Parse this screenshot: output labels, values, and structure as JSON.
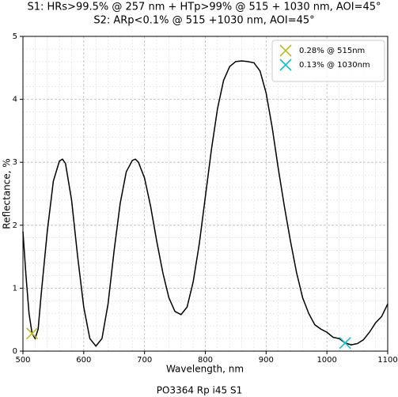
{
  "chart_data": {
    "type": "line",
    "title": "S1: HRs>99.5% @ 257 nm + HTp>99% @ 515 + 1030 nm, AOI=45°",
    "subtitle": "S2: ARp<0.1% @ 515 +1030 nm, AOI=45°",
    "xlabel": "Wavelength, nm",
    "ylabel": "Reflectance, %",
    "caption": "PO3364 Rp i45 S1",
    "xlim": [
      500,
      1100
    ],
    "ylim": [
      0,
      5
    ],
    "xticks": [
      500,
      600,
      700,
      800,
      900,
      1000,
      1100
    ],
    "yticks": [
      0,
      1,
      2,
      3,
      4,
      5
    ],
    "grid": true,
    "minor_grid": true,
    "legend": "upper right",
    "x": [
      500,
      505,
      510,
      515,
      520,
      525,
      530,
      540,
      550,
      560,
      565,
      570,
      580,
      590,
      600,
      610,
      620,
      630,
      640,
      650,
      660,
      670,
      680,
      685,
      690,
      700,
      710,
      720,
      730,
      740,
      750,
      760,
      770,
      780,
      790,
      800,
      810,
      820,
      830,
      840,
      850,
      860,
      870,
      880,
      890,
      900,
      910,
      920,
      930,
      940,
      950,
      960,
      970,
      980,
      990,
      1000,
      1010,
      1020,
      1030,
      1040,
      1050,
      1060,
      1070,
      1080,
      1090,
      1100
    ],
    "series": [
      {
        "color": "#000000",
        "values": [
          1.9,
          1.2,
          0.6,
          0.28,
          0.2,
          0.35,
          0.9,
          1.9,
          2.7,
          3.02,
          3.05,
          2.98,
          2.4,
          1.5,
          0.7,
          0.2,
          0.08,
          0.2,
          0.75,
          1.6,
          2.35,
          2.85,
          3.03,
          3.05,
          3.0,
          2.75,
          2.3,
          1.75,
          1.25,
          0.85,
          0.63,
          0.58,
          0.7,
          1.1,
          1.7,
          2.45,
          3.2,
          3.85,
          4.3,
          4.52,
          4.6,
          4.61,
          4.6,
          4.58,
          4.45,
          4.1,
          3.55,
          2.9,
          2.3,
          1.75,
          1.25,
          0.85,
          0.6,
          0.42,
          0.35,
          0.3,
          0.22,
          0.2,
          0.13,
          0.1,
          0.12,
          0.18,
          0.3,
          0.45,
          0.55,
          0.75
        ]
      }
    ],
    "points": [
      {
        "name": "0.28% @ 515nm",
        "color": "#bcbd22",
        "marker": "x",
        "x": [
          515
        ],
        "values": [
          0.28
        ]
      },
      {
        "name": "0.13% @ 1030nm",
        "color": "#17becf",
        "marker": "x",
        "x": [
          1030
        ],
        "values": [
          0.13
        ]
      }
    ]
  }
}
